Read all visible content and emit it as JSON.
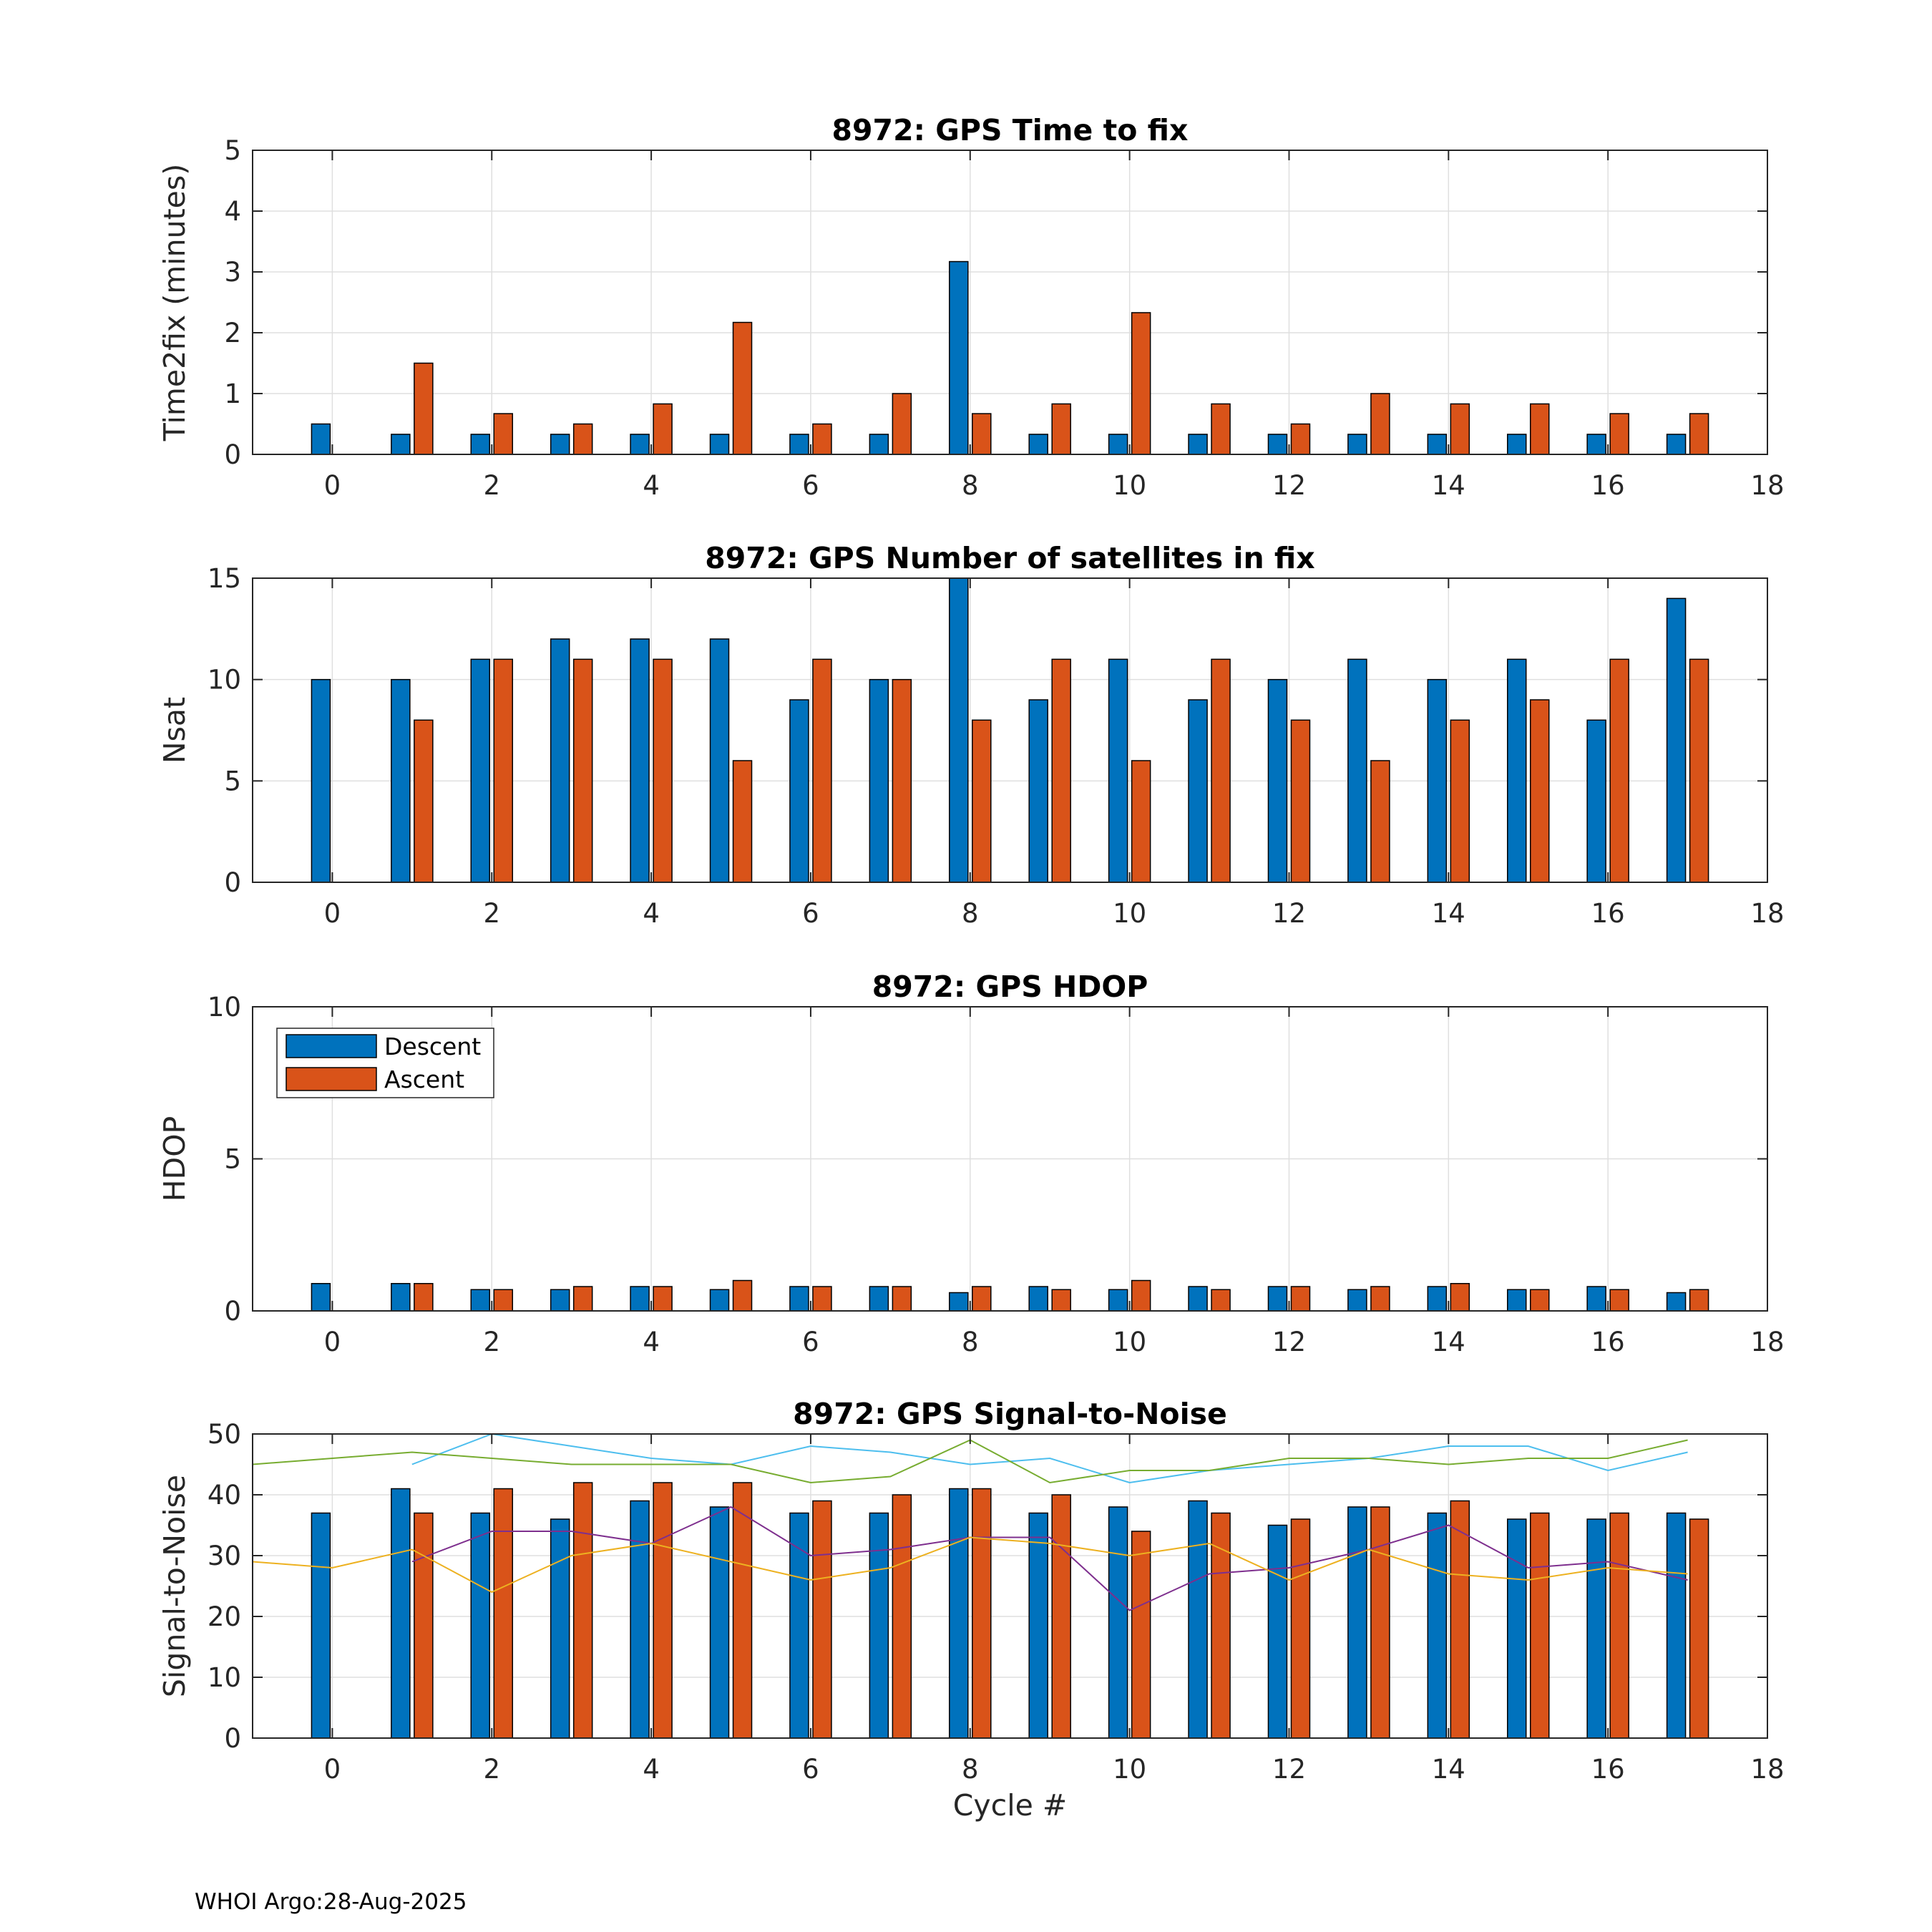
{
  "footer": "WHOI Argo:28-Aug-2025",
  "legend": {
    "descent": "Descent",
    "ascent": "Ascent"
  },
  "colors": {
    "descent": "#0072BD",
    "ascent": "#D95319",
    "sn1": "#4DBEEE",
    "sn2": "#77AC30",
    "sn3": "#7E2F8E",
    "sn4": "#EDB120"
  },
  "chart_data": [
    {
      "type": "bar",
      "title": "8972: GPS Time to fix",
      "xlabel": "",
      "ylabel": "Time2fix (minutes)",
      "xlim": [
        -1,
        18
      ],
      "ylim": [
        0,
        5
      ],
      "xticks": [
        0,
        2,
        4,
        6,
        8,
        10,
        12,
        14,
        16,
        18
      ],
      "yticks": [
        0,
        1,
        2,
        3,
        4,
        5
      ],
      "grid": true,
      "categories": [
        0,
        1,
        2,
        3,
        4,
        5,
        6,
        7,
        8,
        9,
        10,
        11,
        12,
        13,
        14,
        15,
        16,
        17
      ],
      "series": [
        {
          "name": "Descent",
          "values": [
            0.5,
            0.33,
            0.33,
            0.33,
            0.33,
            0.33,
            0.33,
            0.33,
            3.17,
            0.33,
            0.33,
            0.33,
            0.33,
            0.33,
            0.33,
            0.33,
            0.33,
            0.33
          ]
        },
        {
          "name": "Ascent",
          "values": [
            null,
            1.5,
            0.67,
            0.5,
            0.83,
            2.17,
            0.5,
            1.0,
            0.67,
            0.83,
            2.33,
            0.83,
            0.5,
            1.0,
            0.83,
            0.83,
            0.67,
            0.67
          ]
        }
      ]
    },
    {
      "type": "bar",
      "title": "8972: GPS Number of satellites in fix",
      "xlabel": "",
      "ylabel": "Nsat",
      "xlim": [
        -1,
        18
      ],
      "ylim": [
        0,
        15
      ],
      "xticks": [
        0,
        2,
        4,
        6,
        8,
        10,
        12,
        14,
        16,
        18
      ],
      "yticks": [
        0,
        5,
        10,
        15
      ],
      "grid": true,
      "categories": [
        0,
        1,
        2,
        3,
        4,
        5,
        6,
        7,
        8,
        9,
        10,
        11,
        12,
        13,
        14,
        15,
        16,
        17
      ],
      "series": [
        {
          "name": "Descent",
          "values": [
            10,
            10,
            11,
            12,
            12,
            12,
            9,
            10,
            15,
            9,
            11,
            9,
            10,
            11,
            10,
            11,
            8,
            14
          ]
        },
        {
          "name": "Ascent",
          "values": [
            null,
            8,
            11,
            11,
            11,
            6,
            11,
            10,
            8,
            11,
            6,
            11,
            8,
            6,
            8,
            9,
            11,
            11
          ]
        }
      ]
    },
    {
      "type": "bar",
      "title": "8972: GPS HDOP",
      "xlabel": "",
      "ylabel": "HDOP",
      "xlim": [
        -1,
        18
      ],
      "ylim": [
        0,
        10
      ],
      "xticks": [
        0,
        2,
        4,
        6,
        8,
        10,
        12,
        14,
        16,
        18
      ],
      "yticks": [
        0,
        5,
        10
      ],
      "grid": true,
      "legend_position": "top-left",
      "categories": [
        0,
        1,
        2,
        3,
        4,
        5,
        6,
        7,
        8,
        9,
        10,
        11,
        12,
        13,
        14,
        15,
        16,
        17
      ],
      "series": [
        {
          "name": "Descent",
          "values": [
            0.9,
            0.9,
            0.7,
            0.7,
            0.8,
            0.7,
            0.8,
            0.8,
            0.6,
            0.8,
            0.7,
            0.8,
            0.8,
            0.7,
            0.8,
            0.7,
            0.8,
            0.6
          ]
        },
        {
          "name": "Ascent",
          "values": [
            null,
            0.9,
            0.7,
            0.8,
            0.8,
            1.0,
            0.8,
            0.8,
            0.8,
            0.7,
            1.0,
            0.7,
            0.8,
            0.8,
            0.9,
            0.7,
            0.7,
            0.7
          ]
        }
      ]
    },
    {
      "type": "bar",
      "title": "8972: GPS Signal-to-Noise",
      "xlabel": "Cycle #",
      "ylabel": "Signal-to-Noise",
      "xlim": [
        -1,
        18
      ],
      "ylim": [
        0,
        50
      ],
      "xticks": [
        0,
        2,
        4,
        6,
        8,
        10,
        12,
        14,
        16,
        18
      ],
      "yticks": [
        0,
        10,
        20,
        30,
        40,
        50
      ],
      "grid": true,
      "categories": [
        0,
        1,
        2,
        3,
        4,
        5,
        6,
        7,
        8,
        9,
        10,
        11,
        12,
        13,
        14,
        15,
        16,
        17
      ],
      "series": [
        {
          "name": "Descent",
          "values": [
            37,
            41,
            37,
            36,
            39,
            38,
            37,
            37,
            41,
            37,
            38,
            39,
            35,
            38,
            37,
            36,
            36,
            37
          ]
        },
        {
          "name": "Ascent",
          "values": [
            null,
            37,
            41,
            42,
            42,
            42,
            39,
            40,
            41,
            40,
            34,
            37,
            36,
            38,
            39,
            37,
            37,
            36
          ]
        }
      ],
      "lines": [
        {
          "name": "sn1",
          "x": [
            1,
            2,
            3,
            4,
            5,
            6,
            7,
            8,
            9,
            10,
            11,
            12,
            13,
            14,
            15,
            16,
            17
          ],
          "y": [
            45,
            50,
            48,
            46,
            45,
            48,
            47,
            45,
            46,
            42,
            44,
            45,
            46,
            48,
            48,
            44,
            47
          ]
        },
        {
          "name": "sn2",
          "x": [
            -1,
            0,
            1,
            2,
            3,
            4,
            5,
            6,
            7,
            8,
            9,
            10,
            11,
            12,
            13,
            14,
            15,
            16,
            17
          ],
          "y": [
            45,
            46,
            47,
            46,
            45,
            45,
            45,
            42,
            43,
            49,
            42,
            44,
            44,
            46,
            46,
            45,
            46,
            46,
            49
          ]
        },
        {
          "name": "sn3",
          "x": [
            1,
            2,
            3,
            4,
            5,
            6,
            7,
            8,
            9,
            10,
            11,
            12,
            13,
            14,
            15,
            16,
            17
          ],
          "y": [
            29,
            34,
            34,
            32,
            38,
            30,
            31,
            33,
            33,
            21,
            27,
            28,
            31,
            35,
            28,
            29,
            26
          ]
        },
        {
          "name": "sn4",
          "x": [
            -1,
            0,
            1,
            2,
            3,
            4,
            5,
            6,
            7,
            8,
            9,
            10,
            11,
            12,
            13,
            14,
            15,
            16,
            17
          ],
          "y": [
            29,
            28,
            31,
            24,
            30,
            32,
            29,
            26,
            28,
            33,
            32,
            30,
            32,
            26,
            31,
            27,
            26,
            28,
            27
          ]
        }
      ]
    }
  ]
}
